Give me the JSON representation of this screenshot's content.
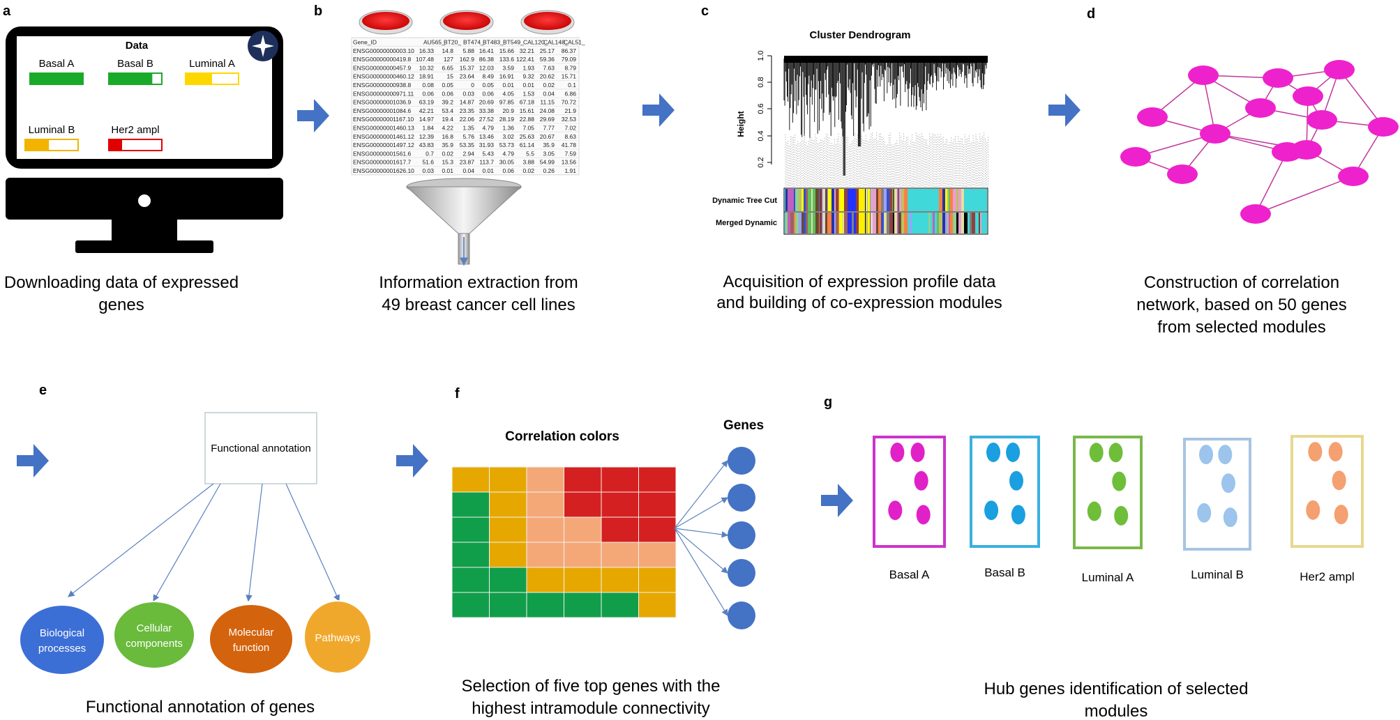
{
  "panels": {
    "a": {
      "letter": "a",
      "screen_title": "Data",
      "bars": [
        {
          "label": "Basal A",
          "fill": 1.0,
          "color": "#1aaa2a"
        },
        {
          "label": "Basal B",
          "fill": 0.82,
          "color": "#1aaa2a"
        },
        {
          "label": "Luminal A",
          "fill": 0.5,
          "color": "#ffd700"
        },
        {
          "label": "Luminal B",
          "fill": 0.45,
          "color": "#f2b400"
        },
        {
          "label": "Her2 ampl",
          "fill": 0.25,
          "color": "#e00000"
        }
      ],
      "caption": [
        "Downloading data of expressed",
        "genes"
      ]
    },
    "b": {
      "letter": "b",
      "table_header": [
        "Gene_ID",
        "AU565_",
        "BT20_",
        "BT474_",
        "BT483_",
        "BT549_",
        "CAL120_",
        "CAL148_",
        "CAL51_"
      ],
      "table_rows": [
        [
          "ENSG00000000003.10",
          "16.33",
          "14.8",
          "5.88",
          "16.41",
          "15.66",
          "32.21",
          "25.17",
          "86.37"
        ],
        [
          "ENSG00000000419.8",
          "107.48",
          "127",
          "162.9",
          "86.38",
          "133.6",
          "122.41",
          "59.36",
          "79.09"
        ],
        [
          "ENSG00000000457.9",
          "10.32",
          "6.65",
          "15.37",
          "12.03",
          "3.59",
          "1.93",
          "7.63",
          "8.79"
        ],
        [
          "ENSG00000000460.12",
          "18.91",
          "15",
          "23.64",
          "8.49",
          "16.91",
          "9.32",
          "20.62",
          "15.71"
        ],
        [
          "ENSG00000000938.8",
          "0.08",
          "0.05",
          "0",
          "0.05",
          "0.01",
          "0.01",
          "0.02",
          "0.1"
        ],
        [
          "ENSG00000000971.11",
          "0.06",
          "0.06",
          "0.03",
          "0.06",
          "4.05",
          "1.53",
          "0.04",
          "6.86"
        ],
        [
          "ENSG00000001036.9",
          "63.19",
          "39.2",
          "14.87",
          "20.69",
          "97.85",
          "67.18",
          "11.15",
          "70.72"
        ],
        [
          "ENSG00000001084.6",
          "42.21",
          "53.4",
          "23.35",
          "33.38",
          "20.9",
          "15.61",
          "24.08",
          "21.9"
        ],
        [
          "ENSG00000001167.10",
          "14.97",
          "19.4",
          "22.06",
          "27.52",
          "28.19",
          "22.88",
          "29.69",
          "32.53"
        ],
        [
          "ENSG00000001460.13",
          "1.84",
          "4.22",
          "1.35",
          "4.79",
          "1.36",
          "7.05",
          "7.77",
          "7.02"
        ],
        [
          "ENSG00000001461.12",
          "12.39",
          "16.8",
          "5.76",
          "13.46",
          "3.02",
          "25.63",
          "20.67",
          "8.63"
        ],
        [
          "ENSG00000001497.12",
          "43.83",
          "35.9",
          "53.35",
          "31.93",
          "53.73",
          "61.14",
          "35.9",
          "41.78"
        ],
        [
          "ENSG00000001561.6",
          "0.7",
          "0.02",
          "2.94",
          "5.43",
          "4.79",
          "5.5",
          "3.05",
          "7.59"
        ],
        [
          "ENSG00000001617.7",
          "51.6",
          "15.3",
          "23.87",
          "113.7",
          "30.05",
          "3.88",
          "54.99",
          "13.56"
        ],
        [
          "ENSG00000001626.10",
          "0.03",
          "0.01",
          "0.04",
          "0.01",
          "0.06",
          "0.02",
          "0.26",
          "1.91"
        ]
      ],
      "caption": [
        "Information extraction from",
        "49 breast cancer cell lines"
      ]
    },
    "c": {
      "letter": "c",
      "title": "Cluster Dendrogram",
      "ylabel": "Height",
      "yticks": [
        "1.0",
        "0.8",
        "0.6",
        "0.4",
        "0.2"
      ],
      "row_labels": [
        "Dynamic Tree Cut",
        "Merged Dynamic"
      ],
      "caption": [
        "Acquisition of expression profile data",
        "and building of co-expression modules"
      ]
    },
    "d": {
      "letter": "d",
      "node_color": "#ee22cc",
      "caption": [
        "Construction of correlation",
        "network, based on 50 genes",
        "from selected modules"
      ]
    },
    "e": {
      "letter": "e",
      "box_label": "Functional annotation",
      "circles": [
        {
          "label": [
            "Biological",
            "processes"
          ],
          "color": "#3c6fd6"
        },
        {
          "label": [
            "Cellular",
            "components"
          ],
          "color": "#6aba3c"
        },
        {
          "label": [
            "Molecular",
            "function"
          ],
          "color": "#d4630d"
        },
        {
          "label": [
            "Pathways"
          ],
          "color": "#f0a82c"
        }
      ],
      "caption": [
        "Functional annotation of genes"
      ]
    },
    "f": {
      "letter": "f",
      "title": "Correlation colors",
      "genes_label": "Genes",
      "grid": [
        [
          "#e6a800",
          "#e6a800",
          "#f4a878",
          "#d42020",
          "#d42020",
          "#d42020"
        ],
        [
          "#119e4a",
          "#e6a800",
          "#f4a878",
          "#d42020",
          "#d42020",
          "#d42020"
        ],
        [
          "#119e4a",
          "#e6a800",
          "#f4a878",
          "#f4a878",
          "#d42020",
          "#d42020"
        ],
        [
          "#119e4a",
          "#e6a800",
          "#f4a878",
          "#f4a878",
          "#f4a878",
          "#f4a878"
        ],
        [
          "#119e4a",
          "#119e4a",
          "#e6a800",
          "#e6a800",
          "#e6a800",
          "#e6a800"
        ],
        [
          "#119e4a",
          "#119e4a",
          "#119e4a",
          "#119e4a",
          "#119e4a",
          "#e6a800"
        ]
      ],
      "caption": [
        "Selection of five top genes with the",
        "highest intramodule connectivity"
      ]
    },
    "g": {
      "letter": "g",
      "modules": [
        {
          "label": "Basal A",
          "border": "#cc33cc",
          "dot": "#e021c8"
        },
        {
          "label": "Basal B",
          "border": "#3ab0e0",
          "dot": "#1a9fe0"
        },
        {
          "label": "Luminal A",
          "border": "#7ab84a",
          "dot": "#6ebe3a"
        },
        {
          "label": "Luminal B",
          "border": "#a8c4e0",
          "dot": "#9cc4ec"
        },
        {
          "label": "Her2 ampl",
          "border": "#e8d890",
          "dot": "#f4a070"
        }
      ],
      "caption": [
        "Hub genes identification of selected",
        "modules"
      ]
    }
  },
  "colors": {
    "arrow": "#4472c4",
    "monitor": "#000000",
    "arrow_line": "#5a80c0"
  }
}
